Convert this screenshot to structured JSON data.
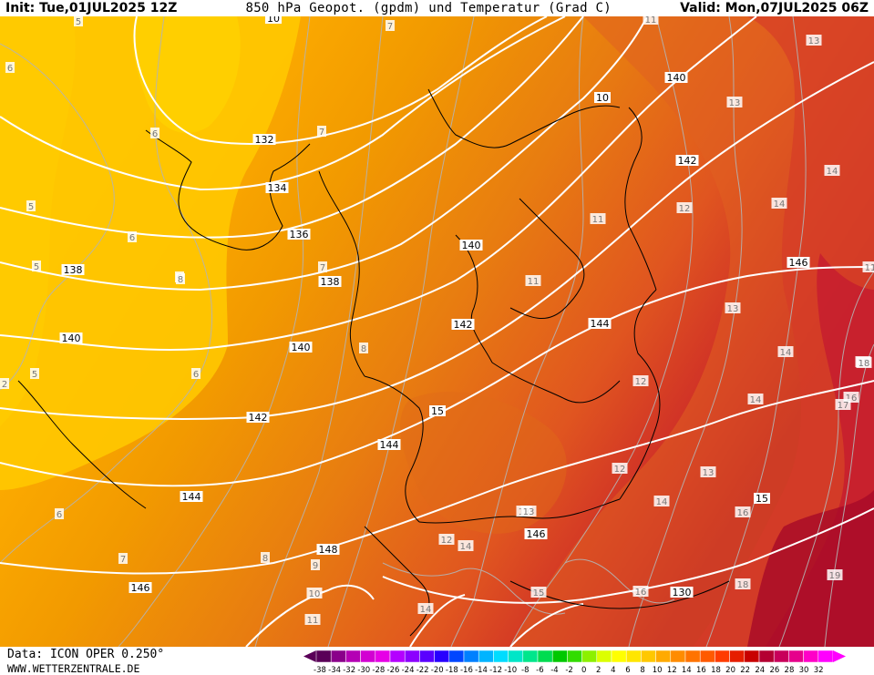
{
  "header": {
    "init": "Init: Tue,01JUL2025 12Z",
    "title": "850 hPa Geopot. (gpdm) und Temperatur (Grad C)",
    "valid": "Valid: Mon,07JUL2025 06Z"
  },
  "footer": {
    "data_source": "Data: ICON OPER 0.250°",
    "website": "WWW.WETTERZENTRALE.DE"
  },
  "legend": {
    "ticks": [
      "-38",
      "-34",
      "-32",
      "-30",
      "-28",
      "-26",
      "-24",
      "-22",
      "-20",
      "-18",
      "-16",
      "-14",
      "-12",
      "-10",
      "-8",
      "-6",
      "-4",
      "-2",
      "0",
      "2",
      "4",
      "6",
      "8",
      "10",
      "12",
      "14",
      "16",
      "18",
      "20",
      "22",
      "24",
      "26",
      "28",
      "30",
      "32"
    ],
    "colors": [
      "#5a0058",
      "#8a008a",
      "#b400b4",
      "#d200d2",
      "#e600e6",
      "#b400ff",
      "#8c00ff",
      "#5a00ff",
      "#2800ff",
      "#0046ff",
      "#0080ff",
      "#00b4ff",
      "#00dcff",
      "#00e6c8",
      "#00e68c",
      "#00dc50",
      "#00c800",
      "#32dc00",
      "#8cf000",
      "#dcff00",
      "#ffff00",
      "#ffe600",
      "#ffc800",
      "#ffaa00",
      "#ff8c00",
      "#ff7300",
      "#ff5a00",
      "#ff3c00",
      "#e61e00",
      "#c80000",
      "#b40032",
      "#c8005a",
      "#e6008c",
      "#ff00c8",
      "#ff00ff"
    ]
  },
  "geopotential_labels": [
    "132",
    "134",
    "136",
    "138",
    "138",
    "140",
    "140",
    "140",
    "140",
    "142",
    "142",
    "142",
    "144",
    "144",
    "144",
    "146",
    "146",
    "146",
    "148",
    "130",
    "10",
    "10",
    "15",
    "15"
  ],
  "temperature_labels": [
    "5",
    "5",
    "5",
    "5",
    "2",
    "6",
    "6",
    "6",
    "6",
    "6",
    "6",
    "7",
    "7",
    "7",
    "7",
    "8",
    "8",
    "8",
    "9",
    "10",
    "11",
    "11",
    "11",
    "11",
    "12",
    "12",
    "12",
    "12",
    "13",
    "13",
    "13",
    "13",
    "13",
    "13",
    "14",
    "14",
    "14",
    "14",
    "14",
    "14",
    "14",
    "15",
    "16",
    "16",
    "16",
    "17",
    "18",
    "18",
    "18",
    "19",
    "11"
  ],
  "colors": {
    "background": "#ffffff",
    "isohypse": "#ffffff",
    "isotherm": "#b4b4b4",
    "border": "#000000"
  }
}
